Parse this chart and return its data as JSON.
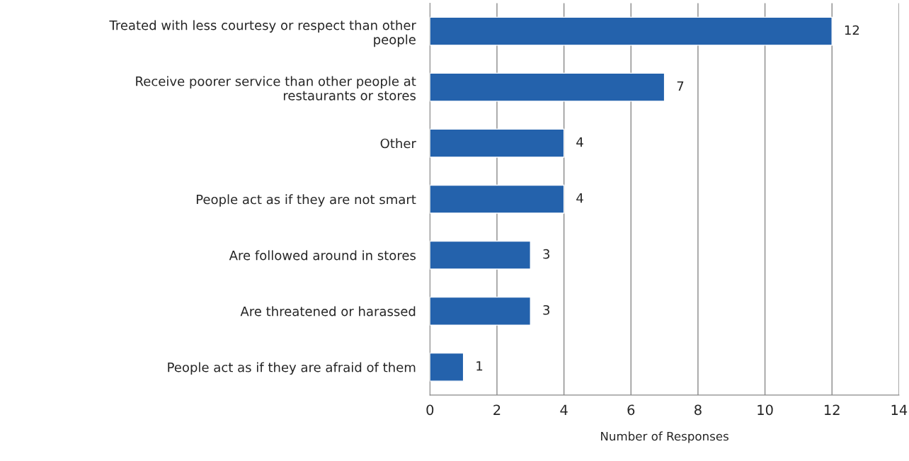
{
  "chart_data": {
    "type": "bar",
    "orientation": "horizontal",
    "categories": [
      "Treated with less courtesy or respect than other\npeople",
      "Receive poorer service than other people at\nrestaurants or stores",
      "Other",
      "People act as if they are not smart",
      "Are followed around in stores",
      "Are threatened or harassed",
      "People act as if they are afraid of them"
    ],
    "values": [
      12,
      7,
      4,
      4,
      3,
      3,
      1
    ],
    "color": "#2462ac",
    "xlim": [
      0,
      14
    ],
    "xticks": [
      0,
      2,
      4,
      6,
      8,
      10,
      12,
      14
    ],
    "xlabel": "Number of Responses",
    "grid": "x",
    "data_labels": true,
    "legend": false
  }
}
